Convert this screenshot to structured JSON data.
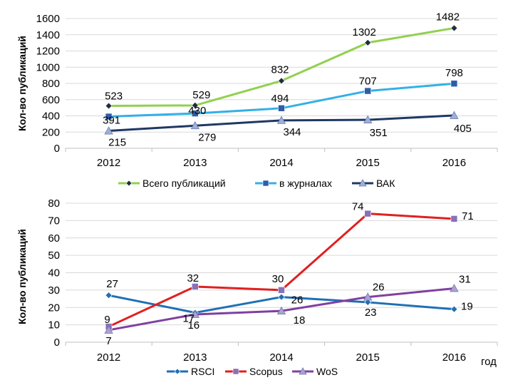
{
  "chart_data": [
    {
      "type": "line",
      "title": "",
      "xlabel": "",
      "ylabel": "Кол-во публикаций",
      "ylim": [
        0,
        1600
      ],
      "yticks": [
        0,
        200,
        400,
        600,
        800,
        1000,
        1200,
        1400,
        1600
      ],
      "categories": [
        "2012",
        "2013",
        "2014",
        "2015",
        "2016"
      ],
      "grid": true,
      "legend_position": "bottom",
      "series": [
        {
          "name": "Всего публикаций",
          "values": [
            523,
            529,
            832,
            1302,
            1482
          ],
          "color": "#92d050",
          "marker": "diamond",
          "marker_color": "#1f2d3d"
        },
        {
          "name": "в журналах",
          "values": [
            391,
            430,
            494,
            707,
            798
          ],
          "color": "#33b0e6",
          "marker": "square",
          "marker_color": "#2e5ea8"
        },
        {
          "name": "ВАК",
          "values": [
            215,
            279,
            344,
            351,
            405
          ],
          "color": "#1f3864",
          "marker": "triangle",
          "marker_color": "#9fb0d8"
        }
      ]
    },
    {
      "type": "line",
      "title": "",
      "xlabel": "год",
      "ylabel": "Кол-во публикаций",
      "ylim": [
        0,
        80
      ],
      "yticks": [
        0,
        10,
        20,
        30,
        40,
        50,
        60,
        70,
        80
      ],
      "categories": [
        "2012",
        "2013",
        "2014",
        "2015",
        "2016"
      ],
      "grid": true,
      "legend_position": "bottom",
      "series": [
        {
          "name": "RSCI",
          "values": [
            27,
            17,
            26,
            23,
            19
          ],
          "color": "#1f6fb5",
          "marker": "diamond",
          "marker_color": "#1f6fb5"
        },
        {
          "name": "Scopus",
          "values": [
            9,
            32,
            30,
            74,
            71
          ],
          "color": "#e02020",
          "marker": "square",
          "marker_color": "#8a70b8"
        },
        {
          "name": "WoS",
          "values": [
            7,
            16,
            18,
            26,
            31
          ],
          "color": "#8040a0",
          "marker": "triangle",
          "marker_color": "#b0a0d0"
        }
      ]
    }
  ]
}
